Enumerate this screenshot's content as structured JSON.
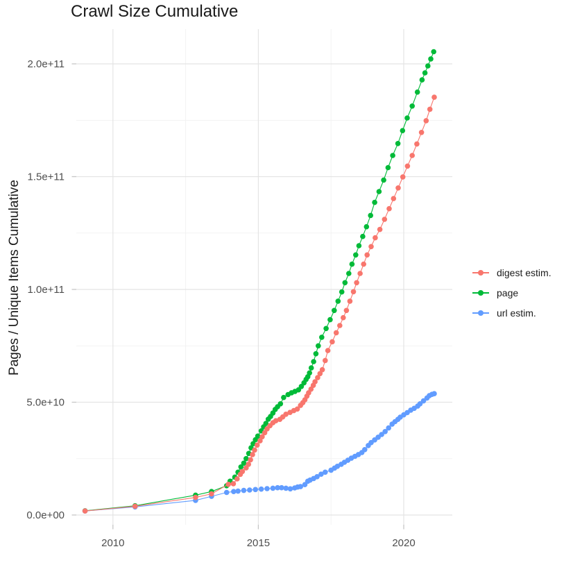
{
  "chart_data": {
    "type": "scatter",
    "title": "Crawl Size Cumulative",
    "xlabel": "",
    "ylabel": "Pages / Unique Items Cumulative",
    "legend_position": "right",
    "grid": true,
    "xlim": [
      2008.74,
      2021.67
    ],
    "ylim_e9": [
      -4.3,
      215.4
    ],
    "y_values_scale": 1000000000.0,
    "x_ticks": {
      "major": [
        {
          "value": 2010,
          "label": "2010"
        },
        {
          "value": 2015,
          "label": "2015"
        },
        {
          "value": 2020,
          "label": "2020"
        }
      ],
      "minor": [
        2012.5,
        2017.5
      ]
    },
    "y_ticks": {
      "major": [
        {
          "value_e9": 0,
          "label": "0.0e+00"
        },
        {
          "value_e9": 50,
          "label": "5.0e+10"
        },
        {
          "value_e9": 100,
          "label": "1.0e+11"
        },
        {
          "value_e9": 150,
          "label": "1.5e+11"
        },
        {
          "value_e9": 200,
          "label": "2.0e+11"
        }
      ],
      "minor_e9": [
        25,
        75,
        125,
        175
      ]
    },
    "colors": {
      "grid_major": "#e4e4e4",
      "grid_minor": "#f1f1f1",
      "tick_mark": "#c6c6c6",
      "tick_text": "#4d4d4d",
      "title": "#1a1a1a"
    },
    "draw_order": [
      1,
      2,
      0
    ],
    "series": [
      {
        "name": "digest estim.",
        "color": "#F8766D",
        "points": [
          [
            2009.04,
            1.8
          ],
          [
            2010.76,
            3.9
          ],
          [
            2012.84,
            7.8
          ],
          [
            2013.39,
            9.4
          ],
          [
            2013.97,
            13.6
          ],
          [
            2014.14,
            13.9
          ],
          [
            2014.27,
            16.0
          ],
          [
            2014.38,
            18.0
          ],
          [
            2014.45,
            19.3
          ],
          [
            2014.58,
            20.9
          ],
          [
            2014.66,
            22.5
          ],
          [
            2014.73,
            24.5
          ],
          [
            2014.8,
            26.8
          ],
          [
            2014.87,
            28.8
          ],
          [
            2014.96,
            31.0
          ],
          [
            2015.06,
            32.9
          ],
          [
            2015.13,
            34.7
          ],
          [
            2015.22,
            36.5
          ],
          [
            2015.3,
            38.2
          ],
          [
            2015.4,
            39.6
          ],
          [
            2015.5,
            40.9
          ],
          [
            2015.6,
            41.8
          ],
          [
            2015.74,
            42.4
          ],
          [
            2015.84,
            43.5
          ],
          [
            2015.95,
            44.7
          ],
          [
            2016.09,
            45.5
          ],
          [
            2016.22,
            46.3
          ],
          [
            2016.34,
            47.0
          ],
          [
            2016.45,
            48.6
          ],
          [
            2016.53,
            49.8
          ],
          [
            2016.6,
            51.1
          ],
          [
            2016.67,
            52.7
          ],
          [
            2016.73,
            54.2
          ],
          [
            2016.81,
            55.8
          ],
          [
            2016.89,
            57.5
          ],
          [
            2016.95,
            59.1
          ],
          [
            2017.04,
            60.9
          ],
          [
            2017.12,
            62.7
          ],
          [
            2017.2,
            64.4
          ],
          [
            2017.3,
            68.5
          ],
          [
            2017.39,
            72.9
          ],
          [
            2017.54,
            76.8
          ],
          [
            2017.68,
            80.8
          ],
          [
            2017.8,
            84.0
          ],
          [
            2017.92,
            87.5
          ],
          [
            2018.03,
            90.7
          ],
          [
            2018.15,
            94.8
          ],
          [
            2018.27,
            99.0
          ],
          [
            2018.38,
            103.0
          ],
          [
            2018.5,
            107.1
          ],
          [
            2018.62,
            111.2
          ],
          [
            2018.74,
            115.3
          ],
          [
            2018.88,
            119.0
          ],
          [
            2019.02,
            122.9
          ],
          [
            2019.18,
            126.6
          ],
          [
            2019.34,
            131.1
          ],
          [
            2019.5,
            135.8
          ],
          [
            2019.65,
            140.3
          ],
          [
            2019.81,
            145.0
          ],
          [
            2019.97,
            149.9
          ],
          [
            2020.13,
            154.7
          ],
          [
            2020.29,
            159.4
          ],
          [
            2020.45,
            164.5
          ],
          [
            2020.61,
            169.6
          ],
          [
            2020.77,
            174.8
          ],
          [
            2020.9,
            179.9
          ],
          [
            2021.05,
            185.2
          ]
        ]
      },
      {
        "name": "page",
        "color": "#00BA38",
        "points": [
          [
            2009.04,
            1.9
          ],
          [
            2010.76,
            4.1
          ],
          [
            2012.84,
            8.8
          ],
          [
            2013.39,
            10.4
          ],
          [
            2013.91,
            13.0
          ],
          [
            2014.03,
            15.0
          ],
          [
            2014.19,
            16.8
          ],
          [
            2014.3,
            19.0
          ],
          [
            2014.4,
            21.3
          ],
          [
            2014.5,
            23.0
          ],
          [
            2014.58,
            25.0
          ],
          [
            2014.67,
            27.3
          ],
          [
            2014.75,
            29.8
          ],
          [
            2014.82,
            31.6
          ],
          [
            2014.9,
            33.4
          ],
          [
            2014.98,
            35.0
          ],
          [
            2015.1,
            37.3
          ],
          [
            2015.18,
            39.1
          ],
          [
            2015.26,
            40.6
          ],
          [
            2015.34,
            42.5
          ],
          [
            2015.42,
            43.7
          ],
          [
            2015.5,
            45.2
          ],
          [
            2015.58,
            46.8
          ],
          [
            2015.66,
            48.0
          ],
          [
            2015.76,
            49.3
          ],
          [
            2015.87,
            52.1
          ],
          [
            2016.02,
            53.4
          ],
          [
            2016.14,
            54.2
          ],
          [
            2016.26,
            54.8
          ],
          [
            2016.38,
            55.5
          ],
          [
            2016.48,
            57.0
          ],
          [
            2016.57,
            58.6
          ],
          [
            2016.64,
            60.1
          ],
          [
            2016.7,
            61.3
          ],
          [
            2016.76,
            63.0
          ],
          [
            2016.82,
            65.2
          ],
          [
            2016.9,
            68.0
          ],
          [
            2016.98,
            71.5
          ],
          [
            2017.06,
            75.0
          ],
          [
            2017.18,
            78.8
          ],
          [
            2017.33,
            82.7
          ],
          [
            2017.47,
            86.6
          ],
          [
            2017.61,
            90.7
          ],
          [
            2017.74,
            94.8
          ],
          [
            2017.87,
            98.9
          ],
          [
            2017.98,
            103.0
          ],
          [
            2018.11,
            107.1
          ],
          [
            2018.22,
            111.2
          ],
          [
            2018.35,
            115.3
          ],
          [
            2018.46,
            119.4
          ],
          [
            2018.59,
            123.5
          ],
          [
            2018.72,
            127.8
          ],
          [
            2018.86,
            132.8
          ],
          [
            2019.0,
            138.6
          ],
          [
            2019.15,
            143.4
          ],
          [
            2019.31,
            148.5
          ],
          [
            2019.46,
            154.0
          ],
          [
            2019.62,
            159.4
          ],
          [
            2019.8,
            164.7
          ],
          [
            2019.96,
            170.4
          ],
          [
            2020.12,
            176.0
          ],
          [
            2020.29,
            181.3
          ],
          [
            2020.47,
            187.5
          ],
          [
            2020.63,
            192.9
          ],
          [
            2020.73,
            196.0
          ],
          [
            2020.83,
            199.1
          ],
          [
            2020.93,
            202.2
          ],
          [
            2021.03,
            205.4
          ]
        ]
      },
      {
        "name": "url estim.",
        "color": "#619CFF",
        "points": [
          [
            2009.04,
            1.8
          ],
          [
            2010.76,
            3.6
          ],
          [
            2012.84,
            6.5
          ],
          [
            2013.39,
            8.3
          ],
          [
            2013.91,
            10.0
          ],
          [
            2014.15,
            10.4
          ],
          [
            2014.3,
            10.6
          ],
          [
            2014.5,
            10.9
          ],
          [
            2014.7,
            11.1
          ],
          [
            2014.9,
            11.3
          ],
          [
            2015.1,
            11.5
          ],
          [
            2015.3,
            11.7
          ],
          [
            2015.5,
            11.9
          ],
          [
            2015.66,
            12.1
          ],
          [
            2015.8,
            12.1
          ],
          [
            2015.95,
            11.9
          ],
          [
            2016.1,
            11.6
          ],
          [
            2016.25,
            12.0
          ],
          [
            2016.35,
            12.4
          ],
          [
            2016.45,
            12.6
          ],
          [
            2016.6,
            13.5
          ],
          [
            2016.7,
            15.0
          ],
          [
            2016.78,
            15.5
          ],
          [
            2016.9,
            16.2
          ],
          [
            2017.02,
            17.0
          ],
          [
            2017.16,
            18.1
          ],
          [
            2017.3,
            19.0
          ],
          [
            2017.5,
            19.9
          ],
          [
            2017.62,
            20.8
          ],
          [
            2017.72,
            21.6
          ],
          [
            2017.85,
            22.5
          ],
          [
            2017.96,
            23.4
          ],
          [
            2018.08,
            24.3
          ],
          [
            2018.2,
            25.2
          ],
          [
            2018.32,
            26.0
          ],
          [
            2018.44,
            26.8
          ],
          [
            2018.56,
            27.7
          ],
          [
            2018.66,
            29.0
          ],
          [
            2018.78,
            30.8
          ],
          [
            2018.88,
            32.1
          ],
          [
            2019.0,
            33.3
          ],
          [
            2019.12,
            34.5
          ],
          [
            2019.24,
            35.7
          ],
          [
            2019.36,
            37.0
          ],
          [
            2019.48,
            38.6
          ],
          [
            2019.6,
            40.3
          ],
          [
            2019.7,
            41.4
          ],
          [
            2019.8,
            42.4
          ],
          [
            2019.88,
            43.4
          ],
          [
            2020.0,
            44.4
          ],
          [
            2020.12,
            45.4
          ],
          [
            2020.24,
            46.5
          ],
          [
            2020.36,
            47.3
          ],
          [
            2020.48,
            48.3
          ],
          [
            2020.56,
            49.3
          ],
          [
            2020.68,
            50.6
          ],
          [
            2020.8,
            51.9
          ],
          [
            2020.88,
            52.9
          ],
          [
            2020.97,
            53.5
          ],
          [
            2021.05,
            53.8
          ]
        ]
      }
    ]
  }
}
